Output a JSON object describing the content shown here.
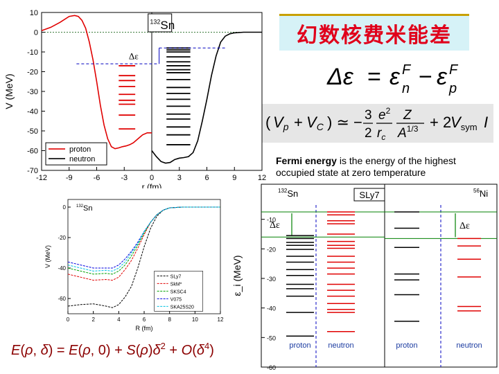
{
  "title": "幻数核费米能差",
  "definition": {
    "term": "Fermi energy",
    "rest": " is the energy of the highest occupied state at zero temperature"
  },
  "equations": {
    "delta_eps": "Δε = ε_n^F − ε_p^F",
    "vn": "V_n − (V_p + V_C) ≃ −(3/2)(e²/r_c)(Z/A^{1/3}) + 2V_sym I",
    "energy_density": "E(ρ, δ) = E(ρ, 0) + S(ρ)δ² + O(δ⁴)"
  },
  "chart_data": [
    {
      "type": "line",
      "nucleus": "132Sn",
      "xlabel": "r (fm)",
      "ylabel": "V (MeV)",
      "xlim": [
        -12,
        12
      ],
      "ylim": [
        -70,
        10
      ],
      "xticks": [
        -12,
        -9,
        -6,
        -3,
        0,
        3,
        6,
        9,
        12
      ],
      "yticks": [
        10,
        0,
        -10,
        -20,
        -30,
        -40,
        -50,
        -60,
        -70
      ],
      "delta_label": "Δε",
      "legend": "bottom-left",
      "series": [
        {
          "name": "proton",
          "color": "#e00000",
          "x": [
            -12,
            -11,
            -10,
            -9,
            -8.4,
            -8,
            -7.6,
            -7.2,
            -6.8,
            -6.4,
            -6,
            -5.6,
            -5.2,
            -4.8,
            -4.4,
            -4,
            -3.6,
            -3.2,
            -2.8,
            -2.4,
            -2,
            -1.5,
            -1,
            -0.5,
            0
          ],
          "y": [
            0.8,
            2.5,
            5,
            8,
            8.5,
            8,
            6,
            2,
            -5,
            -14,
            -25,
            -37,
            -47,
            -54,
            -58,
            -59,
            -58.6,
            -58,
            -57.6,
            -57,
            -56,
            -54,
            -52,
            -51,
            -51
          ]
        },
        {
          "name": "neutron",
          "color": "#000000",
          "x": [
            0,
            0.5,
            1,
            1.5,
            2,
            2.5,
            3,
            3.5,
            4,
            4.5,
            5,
            5.5,
            6,
            6.5,
            7,
            7.5,
            8,
            8.5,
            9,
            10,
            11,
            12
          ],
          "y": [
            -60,
            -63,
            -65.5,
            -66.3,
            -66,
            -64.5,
            -63.8,
            -63.5,
            -63,
            -61,
            -55,
            -45,
            -34,
            -22,
            -12,
            -5,
            -2,
            -0.8,
            -0.3,
            0,
            0,
            0
          ]
        }
      ],
      "proton_levels": [
        -17,
        -22,
        -24.5,
        -27.5,
        -31.5,
        -34.5,
        -36.5,
        -42,
        -49
      ],
      "neutron_levels": [
        -8,
        -9,
        -10,
        -12.5,
        -15,
        -17,
        -19,
        -20.5,
        -24,
        -28,
        -31,
        -34,
        -37.5,
        -41.5,
        -44,
        -48,
        -52,
        -57
      ],
      "fermi_proton": -16,
      "fermi_neutron": -8
    },
    {
      "type": "line",
      "nucleus": "132Sn",
      "xlabel": "R (fm)",
      "ylabel": "V (MeV)",
      "xlim": [
        0,
        12
      ],
      "ylim": [
        -70,
        5
      ],
      "xticks": [
        0,
        2,
        4,
        6,
        8,
        10,
        12
      ],
      "yticks": [
        0,
        -20,
        -40,
        -60
      ],
      "legend": "bottom-right",
      "series": [
        {
          "name": "SLy7",
          "color": "#000000",
          "x": [
            0,
            1,
            2,
            3,
            3.5,
            4,
            4.5,
            5,
            5.5,
            6,
            6.5,
            7,
            7.5,
            8,
            9,
            10,
            11,
            12
          ],
          "y": [
            -65,
            -64,
            -63.5,
            -65,
            -66,
            -64,
            -59,
            -52,
            -40,
            -26,
            -14,
            -6,
            -2,
            -0.5,
            0,
            0,
            0,
            0
          ]
        },
        {
          "name": "SkM*",
          "color": "#e00000",
          "x": [
            0,
            1,
            2,
            3,
            3.5,
            4,
            4.5,
            5,
            5.5,
            6,
            6.5,
            7,
            7.5,
            8,
            9,
            10,
            11,
            12
          ],
          "y": [
            -44,
            -46,
            -48,
            -47.5,
            -48,
            -46,
            -41,
            -35,
            -27,
            -18,
            -10,
            -5,
            -2,
            -0.5,
            0,
            0,
            0,
            0
          ]
        },
        {
          "name": "SKSC4",
          "color": "#00a000",
          "x": [
            0,
            1,
            2,
            3,
            3.5,
            4,
            4.5,
            5,
            5.5,
            6,
            6.5,
            7,
            7.5,
            8,
            9,
            10,
            11,
            12
          ],
          "y": [
            -40,
            -42,
            -44,
            -43.5,
            -44,
            -42,
            -38,
            -32,
            -25,
            -17,
            -10,
            -5,
            -2,
            -0.5,
            0,
            0,
            0,
            0
          ]
        },
        {
          "name": "V075",
          "color": "#0000e0",
          "x": [
            0,
            1,
            2,
            3,
            3.5,
            4,
            4.5,
            5,
            5.5,
            6,
            6.5,
            7,
            7.5,
            8,
            9,
            10,
            11,
            12
          ],
          "y": [
            -36,
            -38,
            -40,
            -40,
            -40,
            -38,
            -34,
            -29,
            -23,
            -16,
            -10,
            -5,
            -2,
            -0.5,
            0,
            0,
            0,
            0
          ]
        },
        {
          "name": "SKA25S20",
          "color": "#00c0e0",
          "x": [
            0,
            1,
            2,
            3,
            3.5,
            4,
            4.5,
            5,
            5.5,
            6,
            6.5,
            7,
            7.5,
            8,
            9,
            10,
            11,
            12
          ],
          "y": [
            -38,
            -40,
            -42,
            -41.5,
            -42,
            -40,
            -36,
            -30,
            -24,
            -16,
            -10,
            -5,
            -2,
            -0.5,
            0,
            0,
            0,
            0
          ]
        }
      ]
    },
    {
      "type": "scatter",
      "ylabel": "ε_i (MeV)",
      "ylim": [
        -60,
        0
      ],
      "yticks": [
        -10,
        -20,
        -30,
        -40,
        -50,
        -60
      ],
      "panel_label": "SLy7",
      "delta_label": "Δε",
      "panels": [
        {
          "nucleus": "132Sn",
          "fermi_proton": -16,
          "fermi_neutron": -7.5,
          "proton_levels": [
            -15.5,
            -16.5,
            -17.8,
            -18.8,
            -20.2,
            -22.5,
            -24.5,
            -27,
            -29,
            -32,
            -33.5,
            -36,
            -41.5,
            -49.5
          ],
          "neutron_levels": [
            -7.5,
            -8.5,
            -10.5,
            -11.5,
            -15,
            -17.5,
            -18.8,
            -19.8,
            -22.5,
            -24.5,
            -26.5,
            -28.5,
            -32,
            -34,
            -36,
            -38.5,
            -40.5,
            -41.5,
            -48
          ],
          "proton_label": "proton",
          "neutron_label": "neutron"
        },
        {
          "nucleus": "56Ni",
          "fermi_proton": -16.5,
          "fermi_neutron": -7.5,
          "proton_levels": [
            -7.5,
            -13,
            -19.5,
            -28.5,
            -30.5,
            -35.5,
            -44.5
          ],
          "neutron_levels": [
            -16.5,
            -19,
            -23.5,
            -29.5,
            -39.5,
            -41
          ],
          "proton_label": "proton",
          "neutron_label": "neutron"
        }
      ]
    }
  ]
}
